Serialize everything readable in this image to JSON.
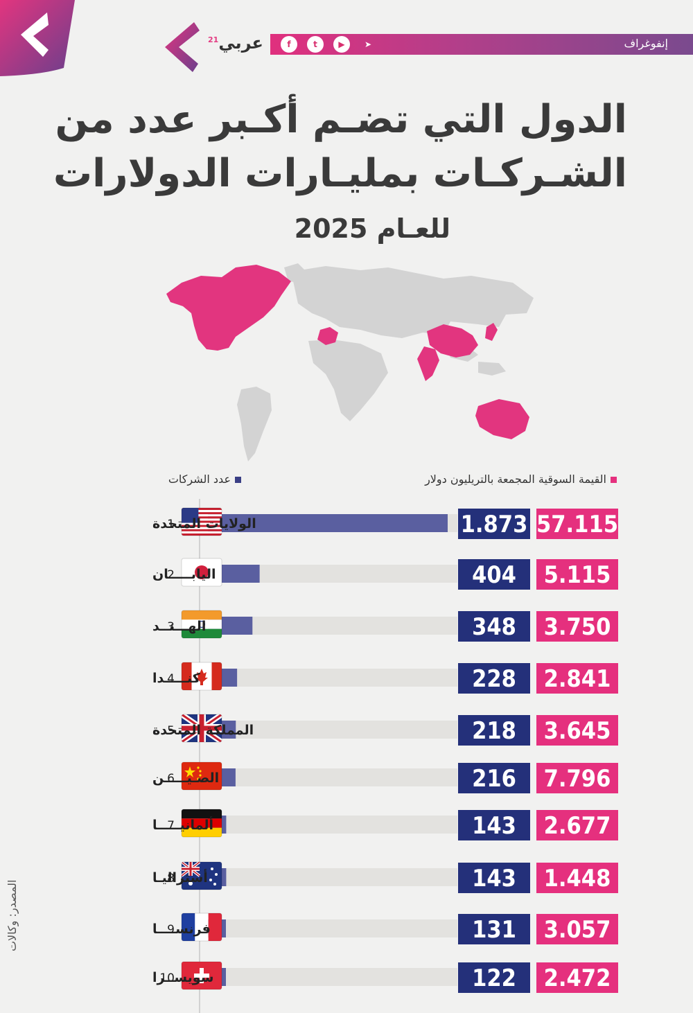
{
  "header": {
    "brand_name": "عربي",
    "brand_sup": "21",
    "section_label": "إنفوغراف",
    "social_icons": [
      "facebook-icon",
      "twitter-icon",
      "youtube-icon",
      "telegram-icon"
    ]
  },
  "colors": {
    "pink": "#e5307e",
    "navy": "#24307a",
    "bar": "#5a5fa0",
    "track": "#e3e2df",
    "map_highlight": "#e2357f",
    "map_base": "#d3d3d3"
  },
  "source_label": "المصدر: وكالات",
  "chart_data": {
    "type": "bar",
    "title": [
      "الدول التي تضـم أكـبر عدد من",
      "الشـركـات بمليـارات الدولارات",
      "للعـام 2025"
    ],
    "legend": {
      "market_value": "القيمة السوقية المجمعة بالتريليون دولار",
      "companies": "عدد الشركات"
    },
    "categories": [
      "الولايات المتحدة",
      "اليابـــــان",
      "الهـــنــد",
      "كنـــــدا",
      "المملكة المتحدة",
      "الصـيـــــن",
      "ألمانيـــــا",
      "أستراليـا",
      "فرنســــا",
      "سويســرا"
    ],
    "ranks": [
      "1",
      "2",
      "3",
      "4",
      "5",
      "6",
      "7",
      "8",
      "9",
      "10"
    ],
    "series": [
      {
        "name": "عدد الشركات",
        "values": [
          1873,
          404,
          348,
          228,
          218,
          216,
          143,
          143,
          131,
          122
        ],
        "labels": [
          "1.873",
          "404",
          "348",
          "228",
          "218",
          "216",
          "143",
          "143",
          "131",
          "122"
        ]
      },
      {
        "name": "القيمة السوقية المجمعة بالتريليون دولار",
        "values": [
          57.115,
          5.115,
          3.75,
          2.841,
          3.645,
          7.796,
          2.677,
          1.448,
          3.057,
          2.472
        ],
        "labels": [
          "57.115",
          "5.115",
          "3.750",
          "2.841",
          "3.645",
          "7.796",
          "2.677",
          "1.448",
          "3.057",
          "2.472"
        ]
      }
    ],
    "flags": [
      "us-flag-icon",
      "japan-flag-icon",
      "india-flag-icon",
      "canada-flag-icon",
      "uk-flag-icon",
      "china-flag-icon",
      "germany-flag-icon",
      "australia-flag-icon",
      "france-flag-icon",
      "switzerland-flag-icon"
    ]
  }
}
